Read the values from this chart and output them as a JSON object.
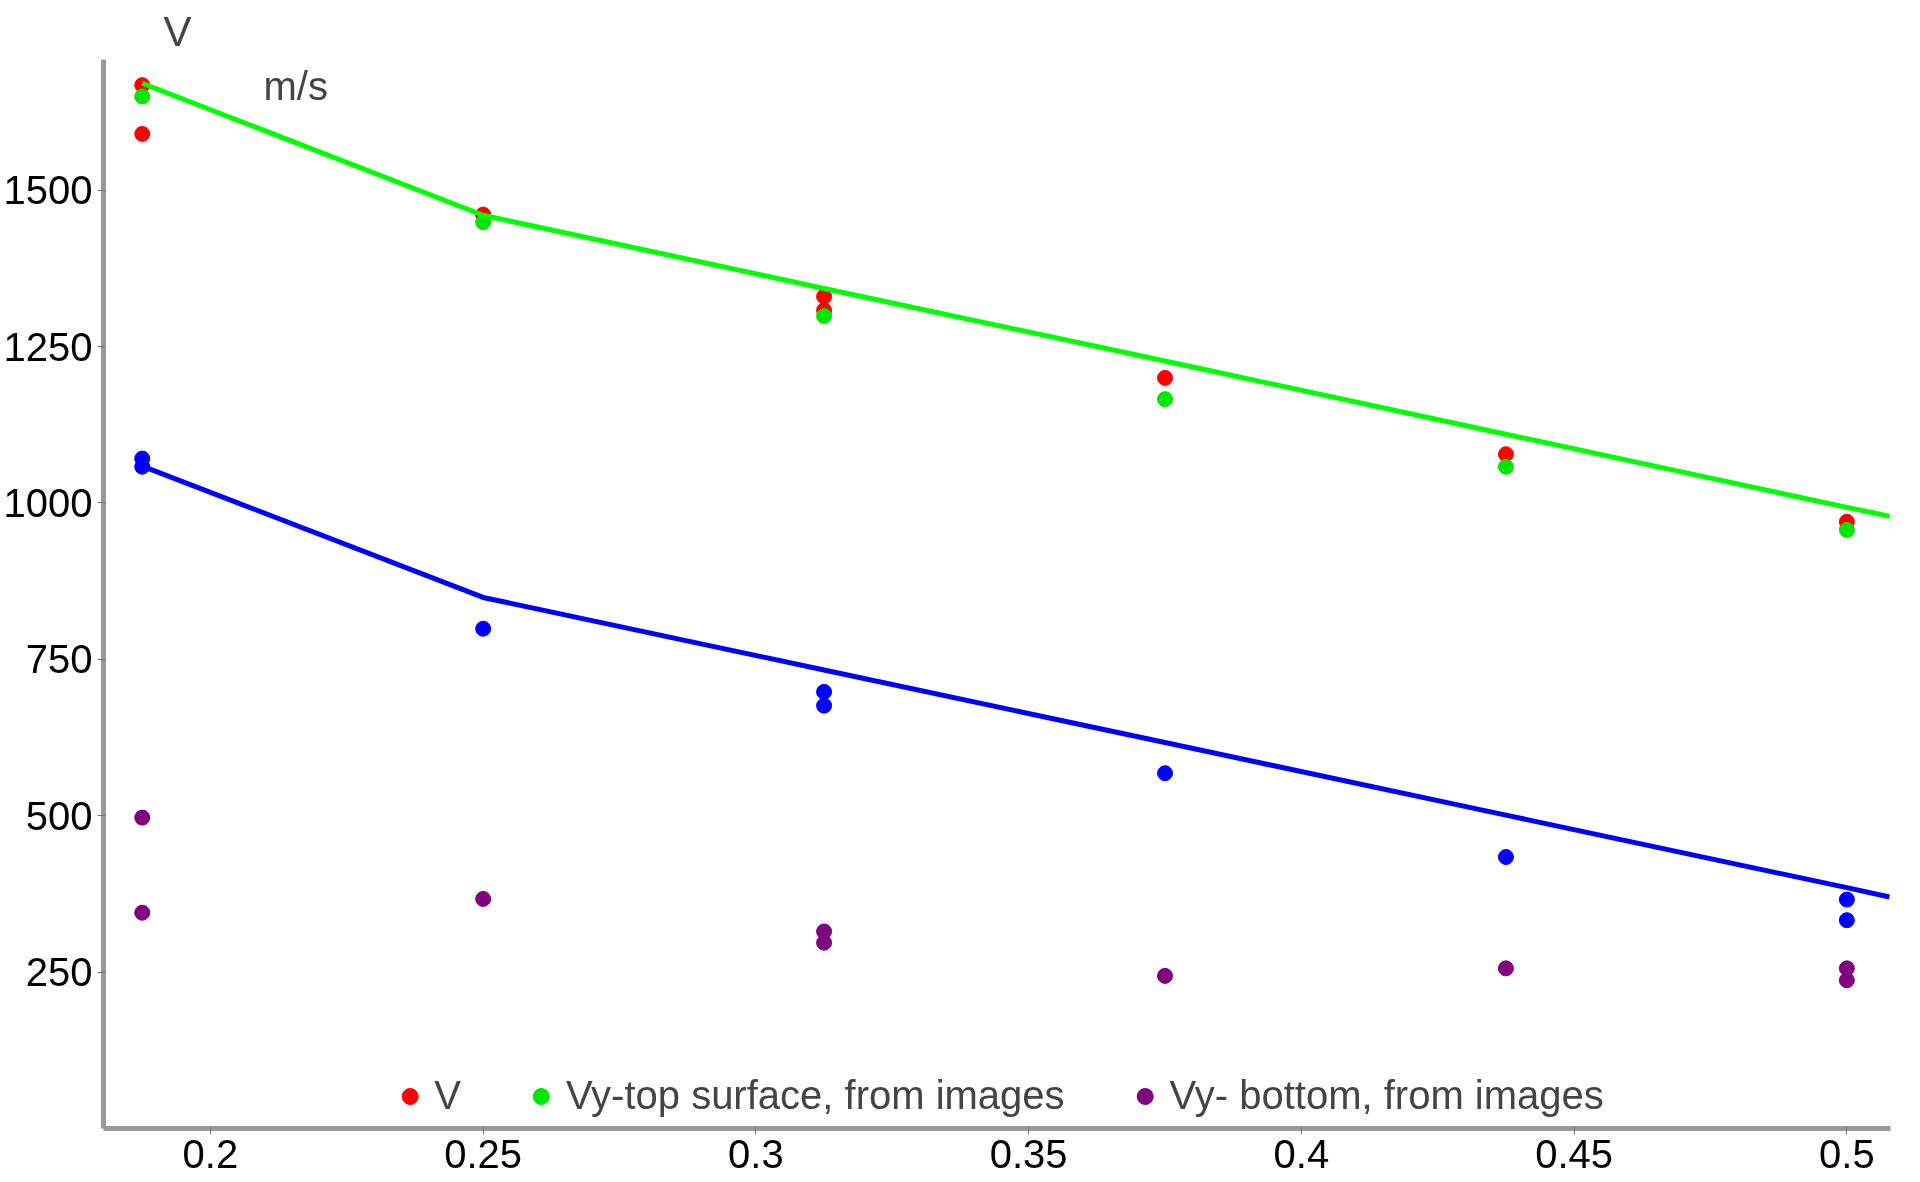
{
  "chart_data": {
    "type": "scatter",
    "ylabel": "V",
    "annotations": [
      "m/s"
    ],
    "xlim": [
      0.1804,
      0.508
    ],
    "ylim": [
      0,
      1709
    ],
    "xticks": [
      0.2,
      0.25,
      0.3,
      0.35,
      0.4,
      0.45,
      0.5
    ],
    "yticks": [
      250,
      500,
      750,
      1000,
      1250,
      1500
    ],
    "grid": false,
    "legend": "bottom",
    "marker": "circle",
    "series": [
      {
        "name": "V",
        "color": "#ff0000",
        "x": [
          0.1875,
          0.1875,
          0.25,
          0.3125,
          0.3125,
          0.375,
          0.4375,
          0.5
        ],
        "values": [
          1668,
          1590,
          1461,
          1330,
          1308,
          1200,
          1078,
          970
        ]
      },
      {
        "name": "Vy-top surface, from images",
        "color": "#00e600",
        "x": [
          0.1875,
          0.25,
          0.3125,
          0.375,
          0.4375,
          0.5
        ],
        "values": [
          1650,
          1449,
          1299,
          1166,
          1058,
          957
        ]
      },
      {
        "color": "#0000ff",
        "x": [
          0.1875,
          0.1875,
          0.25,
          0.3125,
          0.3125,
          0.375,
          0.4375,
          0.5,
          0.5
        ],
        "values": [
          1071,
          1058,
          799,
          698,
          676,
          568,
          434,
          366,
          333
        ]
      },
      {
        "name": "Vy- bottom, from images",
        "color": "#800080",
        "x": [
          0.1875,
          0.1875,
          0.25,
          0.3125,
          0.3125,
          0.375,
          0.4375,
          0.5,
          0.5
        ],
        "values": [
          497,
          345,
          367,
          315,
          297,
          244,
          256,
          256,
          237
        ]
      },
      {
        "type": "line",
        "color": "#00ff00",
        "marker": "none",
        "x": [
          0.1875,
          0.25,
          0.3125,
          0.375,
          0.4375,
          0.5,
          0.5078
        ],
        "values": [
          1671,
          1460,
          1343,
          1227,
          1110,
          993,
          979
        ]
      },
      {
        "type": "line",
        "color": "#0000ff",
        "marker": "none",
        "x": [
          0.1875,
          0.25,
          0.3125,
          0.375,
          0.4375,
          0.5,
          0.5078
        ],
        "values": [
          1059,
          849,
          733,
          617,
          501,
          385,
          370
        ]
      }
    ]
  }
}
